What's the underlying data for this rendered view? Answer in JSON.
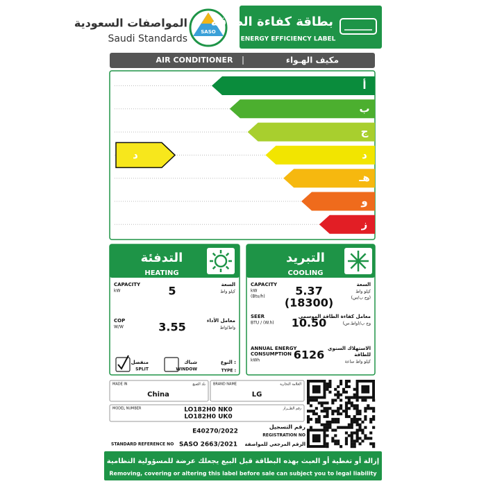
{
  "header": {
    "org_ar": "المواصفات السعودية",
    "org_en": "Saudi Standards",
    "logo": "SASO",
    "title_ar": "بطاقة كفاءة الطاقة",
    "title_en": "ENERGY EFFICIENCY LABEL"
  },
  "product": {
    "en": "AIR CONDITIONER",
    "ar": "مكيف الهـواء"
  },
  "scale": {
    "classes": [
      "أ",
      "ب",
      "ج",
      "د",
      "هـ",
      "و",
      "ز"
    ],
    "rating": "د"
  },
  "heating": {
    "title_ar": "التدفئة",
    "title_en": "HEATING",
    "rows": [
      {
        "label_en": [
          "CAPACITY"
        ],
        "unit_en": [
          "kW"
        ],
        "values": [
          "5"
        ],
        "label_ar": [
          "السعة"
        ],
        "unit_ar": [
          "كيلو واط"
        ]
      },
      {
        "label_en": [
          "COP"
        ],
        "unit_en": [
          "W/W"
        ],
        "values": [
          "3.55"
        ],
        "label_ar": [
          "معامل الأداء"
        ],
        "unit_ar": [
          "واط/واط"
        ]
      }
    ]
  },
  "cooling": {
    "title_ar": "التبريد",
    "title_en": "COOLING",
    "rows": [
      {
        "label_en": [
          "CAPACITY"
        ],
        "unit_en": [
          "kW",
          "(Btu/h)"
        ],
        "values": [
          "5.37",
          "(18300)"
        ],
        "label_ar": [
          "السعة"
        ],
        "unit_ar": [
          "كيلو واط",
          "(وح ب/س)"
        ]
      },
      {
        "label_en": [
          "SEER"
        ],
        "unit_en": [
          "BTU / (W.h)"
        ],
        "values": [
          "10.50"
        ],
        "label_ar": [
          "معامل كفاءة الطاقة الموسمي"
        ],
        "unit_ar": [
          "وح ب/(واط.س)"
        ]
      },
      {
        "label_en": [
          "ANNUAL ENERGY",
          "CONSUMPTION"
        ],
        "unit_en": [
          "kWh"
        ],
        "values": [
          "6126"
        ],
        "label_ar": [
          "الاستهلاك السنوي",
          "للطاقة"
        ],
        "unit_ar": [
          "كيلو واط ساعة"
        ]
      }
    ]
  },
  "type": {
    "label_ar": "النوع :",
    "label_en": "TYPE :",
    "options": [
      {
        "ar": "منفصل",
        "en": "SPLIT",
        "checked": true
      },
      {
        "ar": "شباك",
        "en": "WINDOW",
        "checked": false
      }
    ]
  },
  "details": {
    "made_in_en": "MADE IN",
    "made_in_ar": "بلد الصنع",
    "made_in": "China",
    "brand_en": "BRAND NAME",
    "brand_ar": "العلامة التجارية",
    "brand": "LG",
    "model_en": "MODEL NUMBER",
    "model_ar": "رقم الطــراز",
    "models": [
      "LO182H0 NK0",
      "LO182H0 UK0"
    ],
    "registration": "E40270/2022",
    "registration_ar": "رقم التسجيل",
    "registration_en": "REGISTRATION NO",
    "standard_en": "STANDARD REFERENCE NO",
    "standard": "SASO 2663/2021",
    "standard_ar": "الرقم المرجعي للمواصفة"
  },
  "footer": {
    "ar": "إزالة أو تغطية أو العبث بهذه البطاقة قبل البيع يجعلك عرضة للمسؤولية النظامية",
    "en": "Removing, covering or altering this label before sale can subject you to legal liability"
  }
}
